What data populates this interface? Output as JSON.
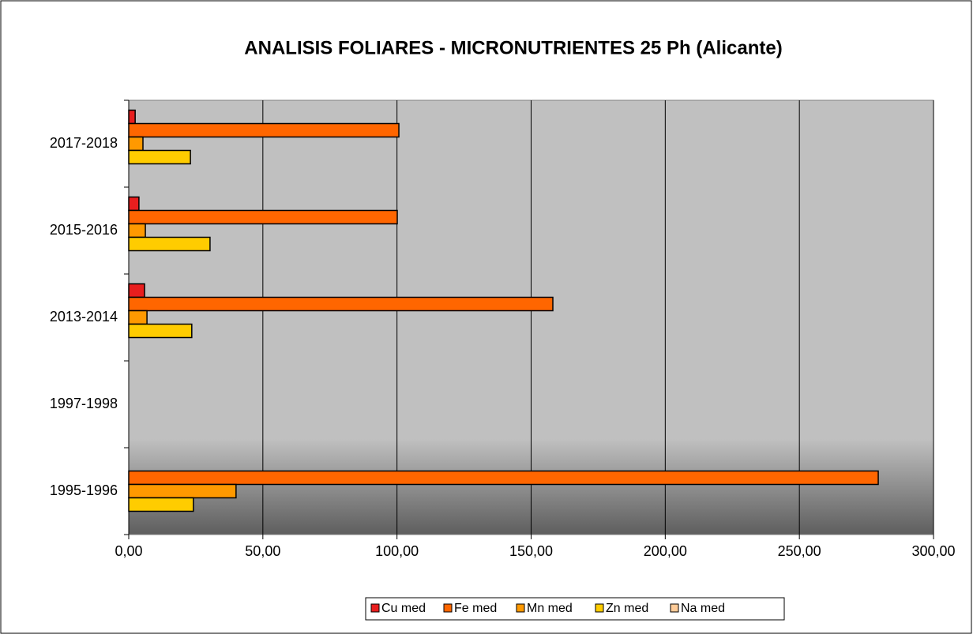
{
  "chart_data": {
    "type": "hbar",
    "title": "ANALISIS FOLIARES - MICRONUTRIENTES 25 Ph (Alicante)",
    "categories": [
      "1995-1996",
      "1997-1998",
      "2013-2014",
      "2015-2016",
      "2017-2018"
    ],
    "series": [
      {
        "name": "Cu med",
        "color": "#e81e1e",
        "values": [
          null,
          null,
          5.9,
          3.8,
          2.4
        ]
      },
      {
        "name": "Fe med",
        "color": "#ff6600",
        "values": [
          279.4,
          null,
          158.1,
          100.1,
          100.7
        ]
      },
      {
        "name": "Mn med",
        "color": "#ff9900",
        "values": [
          40,
          null,
          6.8,
          6.2,
          5.3
        ]
      },
      {
        "name": "Zn med",
        "color": "#ffcc00",
        "values": [
          24.1,
          null,
          23.5,
          30.3,
          23
        ]
      },
      {
        "name": "Na med",
        "color": "#ffcc99",
        "values": [
          null,
          null,
          null,
          null,
          null
        ]
      }
    ],
    "xlim": [
      0,
      300
    ],
    "xticks": [
      {
        "value": 0,
        "label": "0,00"
      },
      {
        "value": 50,
        "label": "50,00"
      },
      {
        "value": 100,
        "label": "100,00"
      },
      {
        "value": 150,
        "label": "150,00"
      },
      {
        "value": 200,
        "label": "200,00"
      },
      {
        "value": 250,
        "label": "250,00"
      },
      {
        "value": 300,
        "label": "300,00"
      }
    ],
    "grid": true
  }
}
